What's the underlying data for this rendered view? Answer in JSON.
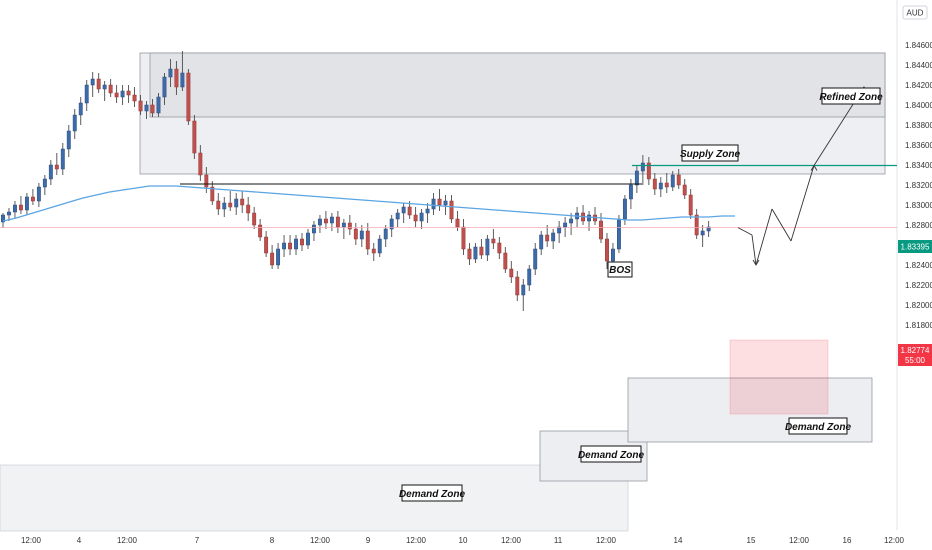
{
  "chart_data": {
    "type": "candlestick",
    "currency": "AUD",
    "y_axis": {
      "ticks": [
        "1.84600",
        "1.84400",
        "1.84200",
        "1.84000",
        "1.83800",
        "1.83600",
        "1.83400",
        "1.83200",
        "1.83000",
        "1.82800",
        "1.82600",
        "1.82400",
        "1.82200",
        "1.82000",
        "1.81800"
      ],
      "ylim": [
        1.817,
        1.8472
      ]
    },
    "x_axis": {
      "ticks": [
        "12:00",
        "4",
        "12:00",
        "7",
        "8",
        "12:00",
        "9",
        "12:00",
        "10",
        "12:00",
        "11",
        "12:00",
        "14",
        "15",
        "12:00",
        "16",
        "12:00"
      ]
    },
    "price_lines": {
      "resistance": {
        "value": 1.83395,
        "label": "1.83395",
        "color": "#089981"
      },
      "current": {
        "value": 1.82774,
        "label": "1.82774",
        "timer": "55:00",
        "color": "#f23645"
      }
    },
    "annotations": {
      "refined_zone": "Refined Zone",
      "supply_zone": "Supply Zone",
      "bos": "BOS",
      "demand_zone_right": "Demand Zone",
      "demand_zone_mid": "Demand Zone",
      "demand_zone_low": "Demand Zone"
    },
    "ohlc": [
      [
        1.8283,
        1.8292,
        1.8277,
        1.829
      ],
      [
        1.829,
        1.8297,
        1.8284,
        1.8293
      ],
      [
        1.8293,
        1.8304,
        1.8287,
        1.83
      ],
      [
        1.83,
        1.8309,
        1.8291,
        1.8295
      ],
      [
        1.8295,
        1.8312,
        1.829,
        1.8308
      ],
      [
        1.8308,
        1.8316,
        1.83,
        1.8304
      ],
      [
        1.8304,
        1.8322,
        1.8298,
        1.8318
      ],
      [
        1.8318,
        1.833,
        1.831,
        1.8326
      ],
      [
        1.8326,
        1.8345,
        1.832,
        1.834
      ],
      [
        1.834,
        1.8352,
        1.833,
        1.8336
      ],
      [
        1.8336,
        1.8362,
        1.833,
        1.8356
      ],
      [
        1.8356,
        1.838,
        1.8348,
        1.8374
      ],
      [
        1.8374,
        1.8396,
        1.8366,
        1.839
      ],
      [
        1.839,
        1.8408,
        1.838,
        1.8402
      ],
      [
        1.8402,
        1.8425,
        1.8394,
        1.842
      ],
      [
        1.842,
        1.8433,
        1.8408,
        1.8426
      ],
      [
        1.8426,
        1.8432,
        1.8412,
        1.8416
      ],
      [
        1.8416,
        1.8424,
        1.8404,
        1.842
      ],
      [
        1.842,
        1.8426,
        1.8408,
        1.8412
      ],
      [
        1.8412,
        1.842,
        1.8402,
        1.8408
      ],
      [
        1.8408,
        1.842,
        1.84,
        1.8414
      ],
      [
        1.8414,
        1.842,
        1.8402,
        1.841
      ],
      [
        1.841,
        1.8418,
        1.8398,
        1.8404
      ],
      [
        1.8404,
        1.841,
        1.839,
        1.8394
      ],
      [
        1.8394,
        1.8404,
        1.8386,
        1.84
      ],
      [
        1.84,
        1.8406,
        1.8388,
        1.8392
      ],
      [
        1.8392,
        1.8412,
        1.8388,
        1.8408
      ],
      [
        1.8408,
        1.8432,
        1.84,
        1.8428
      ],
      [
        1.8428,
        1.8446,
        1.8418,
        1.8436
      ],
      [
        1.8436,
        1.8444,
        1.841,
        1.8418
      ],
      [
        1.8418,
        1.8454,
        1.8414,
        1.8432
      ],
      [
        1.8432,
        1.8436,
        1.838,
        1.8384
      ],
      [
        1.8384,
        1.839,
        1.8346,
        1.8352
      ],
      [
        1.8352,
        1.836,
        1.8324,
        1.833
      ],
      [
        1.833,
        1.8338,
        1.8312,
        1.8318
      ],
      [
        1.8318,
        1.8324,
        1.83,
        1.8304
      ],
      [
        1.8304,
        1.8312,
        1.829,
        1.8296
      ],
      [
        1.8296,
        1.8308,
        1.8288,
        1.8302
      ],
      [
        1.8302,
        1.8314,
        1.8294,
        1.8298
      ],
      [
        1.8298,
        1.8312,
        1.829,
        1.8306
      ],
      [
        1.8306,
        1.8314,
        1.8292,
        1.83
      ],
      [
        1.83,
        1.8308,
        1.8284,
        1.8292
      ],
      [
        1.8292,
        1.8298,
        1.8276,
        1.828
      ],
      [
        1.828,
        1.8286,
        1.8264,
        1.8268
      ],
      [
        1.8268,
        1.8274,
        1.8248,
        1.8252
      ],
      [
        1.8252,
        1.826,
        1.8236,
        1.824
      ],
      [
        1.824,
        1.8262,
        1.8236,
        1.8256
      ],
      [
        1.8256,
        1.827,
        1.8248,
        1.8262
      ],
      [
        1.8262,
        1.827,
        1.825,
        1.8256
      ],
      [
        1.8256,
        1.827,
        1.825,
        1.8266
      ],
      [
        1.8266,
        1.8272,
        1.8254,
        1.826
      ],
      [
        1.826,
        1.8276,
        1.8256,
        1.8272
      ],
      [
        1.8272,
        1.8284,
        1.8264,
        1.828
      ],
      [
        1.828,
        1.829,
        1.8272,
        1.8286
      ],
      [
        1.8286,
        1.8294,
        1.8276,
        1.8282
      ],
      [
        1.8282,
        1.8292,
        1.8274,
        1.8288
      ],
      [
        1.8288,
        1.8294,
        1.8272,
        1.8278
      ],
      [
        1.8278,
        1.8286,
        1.8266,
        1.8282
      ],
      [
        1.8282,
        1.829,
        1.827,
        1.8276
      ],
      [
        1.8276,
        1.8282,
        1.826,
        1.8266
      ],
      [
        1.8266,
        1.828,
        1.8258,
        1.8274
      ],
      [
        1.8274,
        1.8282,
        1.825,
        1.8256
      ],
      [
        1.8256,
        1.8262,
        1.8244,
        1.8252
      ],
      [
        1.8252,
        1.827,
        1.8248,
        1.8266
      ],
      [
        1.8266,
        1.828,
        1.8258,
        1.8276
      ],
      [
        1.8276,
        1.829,
        1.8268,
        1.8286
      ],
      [
        1.8286,
        1.8296,
        1.8278,
        1.8292
      ],
      [
        1.8292,
        1.8302,
        1.8282,
        1.8298
      ],
      [
        1.8298,
        1.8304,
        1.8286,
        1.829
      ],
      [
        1.829,
        1.8298,
        1.8278,
        1.8284
      ],
      [
        1.8284,
        1.8296,
        1.8276,
        1.8292
      ],
      [
        1.8292,
        1.8302,
        1.8282,
        1.8296
      ],
      [
        1.8296,
        1.8312,
        1.829,
        1.8306
      ],
      [
        1.8306,
        1.8316,
        1.8294,
        1.83
      ],
      [
        1.83,
        1.831,
        1.829,
        1.8304
      ],
      [
        1.8304,
        1.831,
        1.8282,
        1.8286
      ],
      [
        1.8286,
        1.8294,
        1.8274,
        1.8278
      ],
      [
        1.8278,
        1.8286,
        1.825,
        1.8256
      ],
      [
        1.8256,
        1.8262,
        1.824,
        1.8246
      ],
      [
        1.8246,
        1.8262,
        1.8242,
        1.8258
      ],
      [
        1.8258,
        1.8266,
        1.8246,
        1.825
      ],
      [
        1.825,
        1.827,
        1.8244,
        1.8266
      ],
      [
        1.8266,
        1.8276,
        1.8256,
        1.8262
      ],
      [
        1.8262,
        1.8268,
        1.8246,
        1.8252
      ],
      [
        1.8252,
        1.8258,
        1.8232,
        1.8236
      ],
      [
        1.8236,
        1.8244,
        1.8222,
        1.8228
      ],
      [
        1.8228,
        1.8234,
        1.8204,
        1.821
      ],
      [
        1.821,
        1.8226,
        1.8194,
        1.822
      ],
      [
        1.822,
        1.824,
        1.8214,
        1.8236
      ],
      [
        1.8236,
        1.8262,
        1.823,
        1.8256
      ],
      [
        1.8256,
        1.8274,
        1.825,
        1.827
      ],
      [
        1.827,
        1.828,
        1.8258,
        1.8264
      ],
      [
        1.8264,
        1.8276,
        1.8256,
        1.8272
      ],
      [
        1.8272,
        1.8284,
        1.8262,
        1.8278
      ],
      [
        1.8278,
        1.8288,
        1.8268,
        1.8282
      ],
      [
        1.8282,
        1.8292,
        1.827,
        1.8286
      ],
      [
        1.8286,
        1.8298,
        1.8278,
        1.8292
      ],
      [
        1.8292,
        1.83,
        1.828,
        1.8284
      ],
      [
        1.8284,
        1.8294,
        1.8274,
        1.829
      ],
      [
        1.829,
        1.8298,
        1.828,
        1.8284
      ],
      [
        1.8284,
        1.8292,
        1.8262,
        1.8266
      ],
      [
        1.8266,
        1.8272,
        1.8236,
        1.8244
      ],
      [
        1.8244,
        1.8262,
        1.824,
        1.8256
      ],
      [
        1.8256,
        1.829,
        1.8252,
        1.8286
      ],
      [
        1.8286,
        1.831,
        1.828,
        1.8306
      ],
      [
        1.8306,
        1.8326,
        1.8296,
        1.832
      ],
      [
        1.832,
        1.834,
        1.8312,
        1.8334
      ],
      [
        1.8334,
        1.835,
        1.832,
        1.8342
      ],
      [
        1.8342,
        1.8348,
        1.832,
        1.8326
      ],
      [
        1.8326,
        1.8332,
        1.831,
        1.8316
      ],
      [
        1.8316,
        1.8328,
        1.8308,
        1.8322
      ],
      [
        1.8322,
        1.8332,
        1.8312,
        1.8318
      ],
      [
        1.8318,
        1.8334,
        1.8314,
        1.833
      ],
      [
        1.833,
        1.8336,
        1.8316,
        1.832
      ],
      [
        1.832,
        1.8326,
        1.8306,
        1.831
      ],
      [
        1.831,
        1.8316,
        1.8286,
        1.829
      ],
      [
        1.829,
        1.8296,
        1.8266,
        1.827
      ],
      [
        1.827,
        1.828,
        1.8258,
        1.8274
      ],
      [
        1.8274,
        1.8284,
        1.8268,
        1.8278
      ]
    ],
    "ma": [
      1.8284,
      1.8287,
      1.8291,
      1.8295,
      1.8299,
      1.8303,
      1.8307,
      1.831,
      1.8313,
      1.8315,
      1.8317,
      1.8319,
      1.8319,
      1.8319,
      1.8318,
      1.8317,
      1.8316,
      1.8315,
      1.8314,
      1.8313,
      1.8312,
      1.8311,
      1.831,
      1.8309,
      1.8308,
      1.8307,
      1.8306,
      1.8305,
      1.8304,
      1.8303,
      1.8302,
      1.8301,
      1.83,
      1.8299,
      1.8298,
      1.8297,
      1.8296,
      1.8295,
      1.8294,
      1.8293,
      1.8292,
      1.8291,
      1.829,
      1.8289,
      1.8288,
      1.8287,
      1.8286,
      1.8285,
      1.8285,
      1.8286,
      1.8287,
      1.8288,
      1.8288,
      1.8288,
      1.8289,
      1.8289
    ],
    "forecast_path": [
      [
        1.82774,
        1.827
      ],
      [
        1.827,
        1.824
      ],
      [
        1.824,
        1.8296
      ],
      [
        1.8296,
        1.8264
      ],
      [
        1.8264,
        1.83395
      ],
      [
        1.83395,
        1.8418
      ]
    ]
  }
}
